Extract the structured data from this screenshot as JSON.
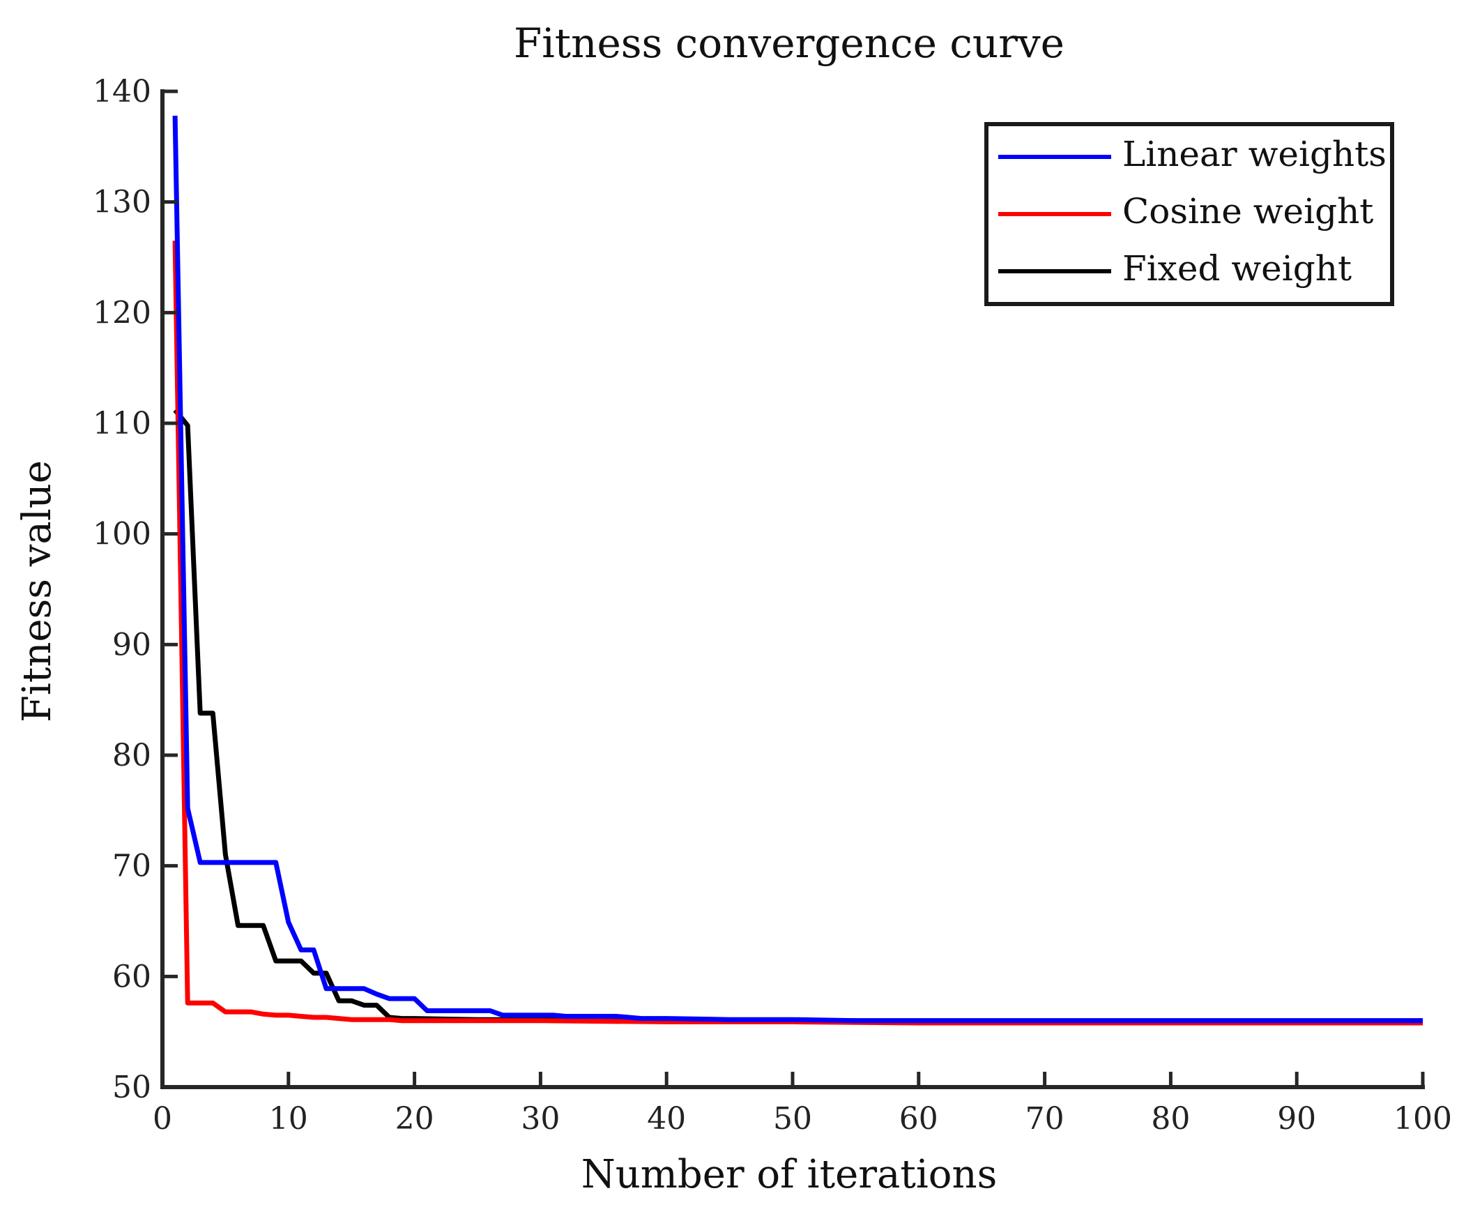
{
  "chart_data": {
    "type": "line",
    "title": "Fitness convergence curve",
    "xlabel": "Number of iterations",
    "ylabel": "Fitness value",
    "xlim": [
      0,
      100
    ],
    "ylim": [
      50,
      140
    ],
    "xticks": [
      "0",
      "10",
      "20",
      "30",
      "40",
      "50",
      "60",
      "70",
      "80",
      "90",
      "100"
    ],
    "yticks": [
      "50",
      "60",
      "70",
      "80",
      "90",
      "100",
      "110",
      "120",
      "130",
      "140"
    ],
    "grid": false,
    "legend_position": "top-right",
    "series": [
      {
        "name": "Linear weights",
        "color": "#0000ff",
        "x": [
          1,
          2,
          3,
          4,
          5,
          6,
          7,
          8,
          9,
          10,
          11,
          12,
          13,
          14,
          15,
          16,
          17,
          18,
          19,
          20,
          21,
          22,
          23,
          24,
          25,
          26,
          27,
          28,
          29,
          30,
          31,
          32,
          33,
          34,
          35,
          36,
          37,
          38,
          39,
          40,
          45,
          50,
          55,
          60,
          70,
          80,
          90,
          100
        ],
        "values": [
          137.8,
          75.2,
          70.3,
          70.3,
          70.3,
          70.3,
          70.3,
          70.3,
          70.3,
          64.9,
          62.4,
          62.4,
          58.9,
          58.9,
          58.9,
          58.9,
          58.4,
          58.0,
          58.0,
          58.0,
          56.9,
          56.9,
          56.9,
          56.9,
          56.9,
          56.9,
          56.5,
          56.5,
          56.5,
          56.5,
          56.5,
          56.4,
          56.4,
          56.4,
          56.4,
          56.4,
          56.3,
          56.2,
          56.2,
          56.2,
          56.1,
          56.1,
          56.0,
          56.0,
          56.0,
          56.0,
          56.0,
          56.0
        ]
      },
      {
        "name": "Cosine weight",
        "color": "#ff0000",
        "x": [
          1,
          2,
          3,
          4,
          5,
          6,
          7,
          8,
          9,
          10,
          11,
          12,
          13,
          14,
          15,
          16,
          17,
          18,
          19,
          20,
          25,
          30,
          40,
          50,
          60,
          70,
          80,
          90,
          100
        ],
        "values": [
          126.5,
          57.6,
          57.6,
          57.6,
          56.8,
          56.8,
          56.8,
          56.6,
          56.5,
          56.5,
          56.4,
          56.3,
          56.3,
          56.2,
          56.1,
          56.1,
          56.1,
          56.1,
          56.0,
          56.0,
          56.0,
          56.0,
          55.9,
          55.9,
          55.8,
          55.8,
          55.8,
          55.8,
          55.8
        ]
      },
      {
        "name": "Fixed weight",
        "color": "#000000",
        "x": [
          1,
          2,
          3,
          4,
          5,
          6,
          7,
          8,
          9,
          10,
          11,
          12,
          13,
          14,
          15,
          16,
          17,
          18,
          19,
          20,
          25,
          30,
          40,
          50,
          60,
          70,
          80,
          90,
          100
        ],
        "values": [
          111.2,
          109.8,
          83.8,
          83.8,
          71.0,
          64.6,
          64.6,
          64.6,
          61.4,
          61.4,
          61.4,
          60.3,
          60.3,
          57.8,
          57.8,
          57.4,
          57.4,
          56.3,
          56.2,
          56.2,
          56.1,
          56.1,
          56.0,
          56.0,
          56.0,
          56.0,
          56.0,
          56.0,
          56.0
        ]
      }
    ]
  }
}
